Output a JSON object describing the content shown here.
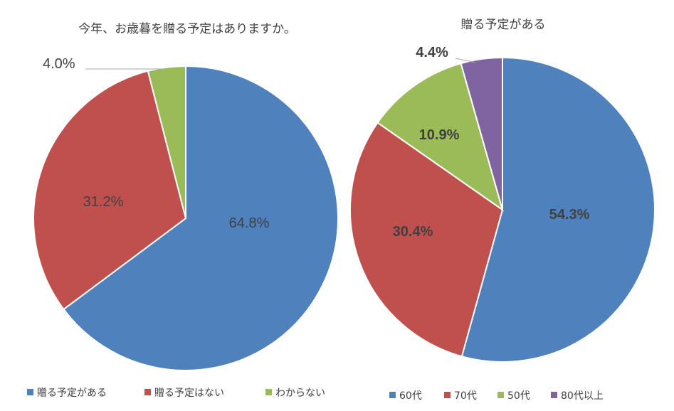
{
  "chart_data": [
    {
      "type": "pie",
      "title": "今年、お歳暮を贈る予定はありますか。",
      "categories": [
        "贈る予定がある",
        "贈る予定はない",
        "わからない"
      ],
      "values": [
        64.8,
        31.2,
        4.0
      ],
      "labels": [
        "64.8%",
        "31.2%",
        "4.0%"
      ],
      "colors": [
        "#4f81bd",
        "#c0504d",
        "#9bbb59"
      ],
      "legend": "bottom"
    },
    {
      "type": "pie",
      "title": "贈る予定がある",
      "categories": [
        "60代",
        "70代",
        "50代",
        "80代以上"
      ],
      "values": [
        54.3,
        30.4,
        10.9,
        4.4
      ],
      "labels": [
        "54.3%",
        "30.4%",
        "10.9%",
        "4.4%"
      ],
      "colors": [
        "#4f81bd",
        "#c0504d",
        "#9bbb59",
        "#8064a2"
      ],
      "legend": "bottom"
    }
  ]
}
